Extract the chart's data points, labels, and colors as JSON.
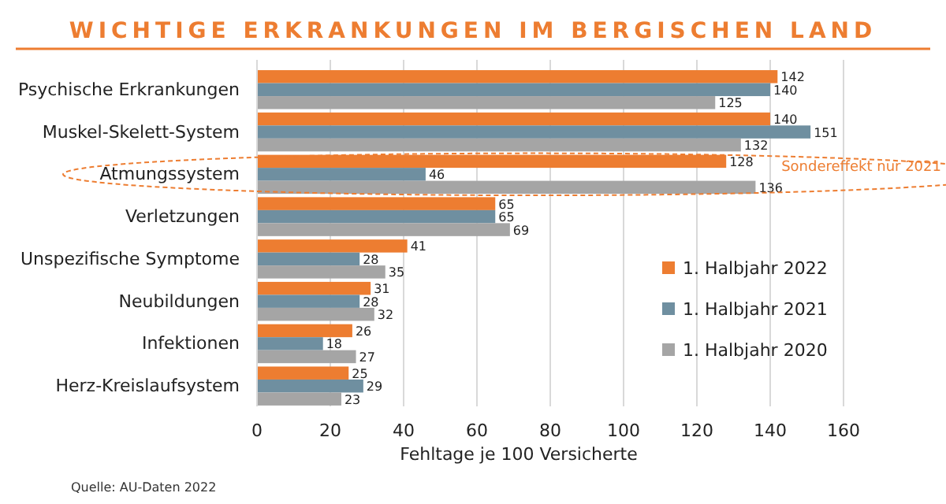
{
  "chart_data": {
    "type": "bar",
    "orientation": "horizontal",
    "title": "WICHTIGE ERKRANKUNGEN IM BERGISCHEN LAND",
    "xlabel": "Fehltage je 100 Versicherte",
    "categories": [
      "Psychische Erkrankungen",
      "Muskel-Skelett-System",
      "Atmungssystem",
      "Verletzungen",
      "Unspezifische Symptome",
      "Neubildungen",
      "Infektionen",
      "Herz-Kreislaufsystem"
    ],
    "series": [
      {
        "name": "1. Halbjahr 2022",
        "color": "#ed7d31",
        "values": [
          142,
          140,
          128,
          65,
          41,
          31,
          26,
          25
        ]
      },
      {
        "name": "1. Halbjahr 2021",
        "color": "#6f8fa0",
        "values": [
          140,
          151,
          46,
          65,
          28,
          28,
          18,
          29
        ]
      },
      {
        "name": "1. Halbjahr 2020",
        "color": "#a5a5a5",
        "values": [
          125,
          132,
          136,
          69,
          35,
          32,
          27,
          23
        ]
      }
    ],
    "xlim": [
      0,
      160
    ],
    "xticks": [
      0,
      20,
      40,
      60,
      80,
      100,
      120,
      140,
      160
    ],
    "grid": "x",
    "legend": "bottom right",
    "data_labels": true,
    "annotations": [
      "Sondereffekt nur 2021",
      "Quelle: AU-Daten 2022"
    ]
  }
}
